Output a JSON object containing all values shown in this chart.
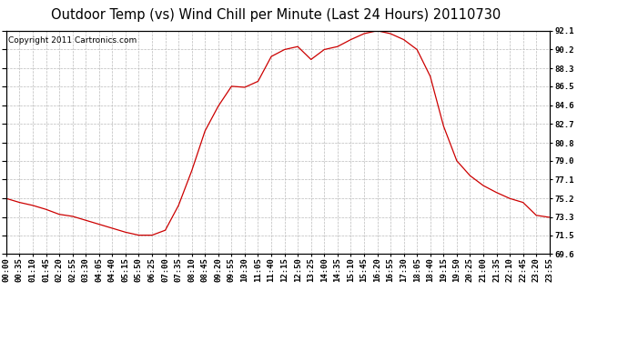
{
  "title": "Outdoor Temp (vs) Wind Chill per Minute (Last 24 Hours) 20110730",
  "copyright": "Copyright 2011 Cartronics.com",
  "yticks": [
    69.6,
    71.5,
    73.3,
    75.2,
    77.1,
    79.0,
    80.8,
    82.7,
    84.6,
    86.5,
    88.3,
    90.2,
    92.1
  ],
  "ymin": 69.6,
  "ymax": 92.1,
  "line_color": "#cc0000",
  "background_color": "#ffffff",
  "plot_bg_color": "#ffffff",
  "grid_color": "#bbbbbb",
  "border_color": "#000000",
  "title_fontsize": 10.5,
  "copyright_fontsize": 6.5,
  "tick_fontsize": 6.5,
  "xtick_labels": [
    "00:00",
    "00:35",
    "01:10",
    "01:45",
    "02:20",
    "02:55",
    "03:30",
    "04:05",
    "04:40",
    "05:15",
    "05:50",
    "06:25",
    "07:00",
    "07:35",
    "08:10",
    "08:45",
    "09:20",
    "09:55",
    "10:30",
    "11:05",
    "11:40",
    "12:15",
    "12:50",
    "13:25",
    "14:00",
    "14:35",
    "15:10",
    "15:45",
    "16:20",
    "16:55",
    "17:30",
    "18:05",
    "18:40",
    "19:15",
    "19:50",
    "20:25",
    "21:00",
    "21:35",
    "22:10",
    "22:45",
    "23:20",
    "23:55"
  ],
  "data_x": [
    0,
    1,
    2,
    3,
    4,
    5,
    6,
    7,
    8,
    9,
    10,
    11,
    12,
    13,
    14,
    15,
    16,
    17,
    18,
    19,
    20,
    21,
    22,
    23,
    24,
    25,
    26,
    27,
    28,
    29,
    30,
    31,
    32,
    33,
    34,
    35,
    36,
    37,
    38,
    39,
    40,
    41
  ],
  "data_y": [
    75.2,
    74.8,
    74.5,
    74.1,
    73.6,
    73.4,
    73.0,
    72.6,
    72.2,
    71.8,
    71.5,
    71.5,
    72.0,
    74.5,
    78.0,
    82.0,
    84.5,
    86.5,
    86.4,
    87.0,
    89.5,
    90.2,
    90.5,
    89.2,
    90.2,
    90.5,
    91.2,
    91.8,
    92.1,
    91.8,
    91.2,
    90.2,
    87.5,
    82.5,
    79.0,
    77.5,
    76.5,
    75.8,
    75.2,
    74.8,
    73.5,
    73.3
  ]
}
